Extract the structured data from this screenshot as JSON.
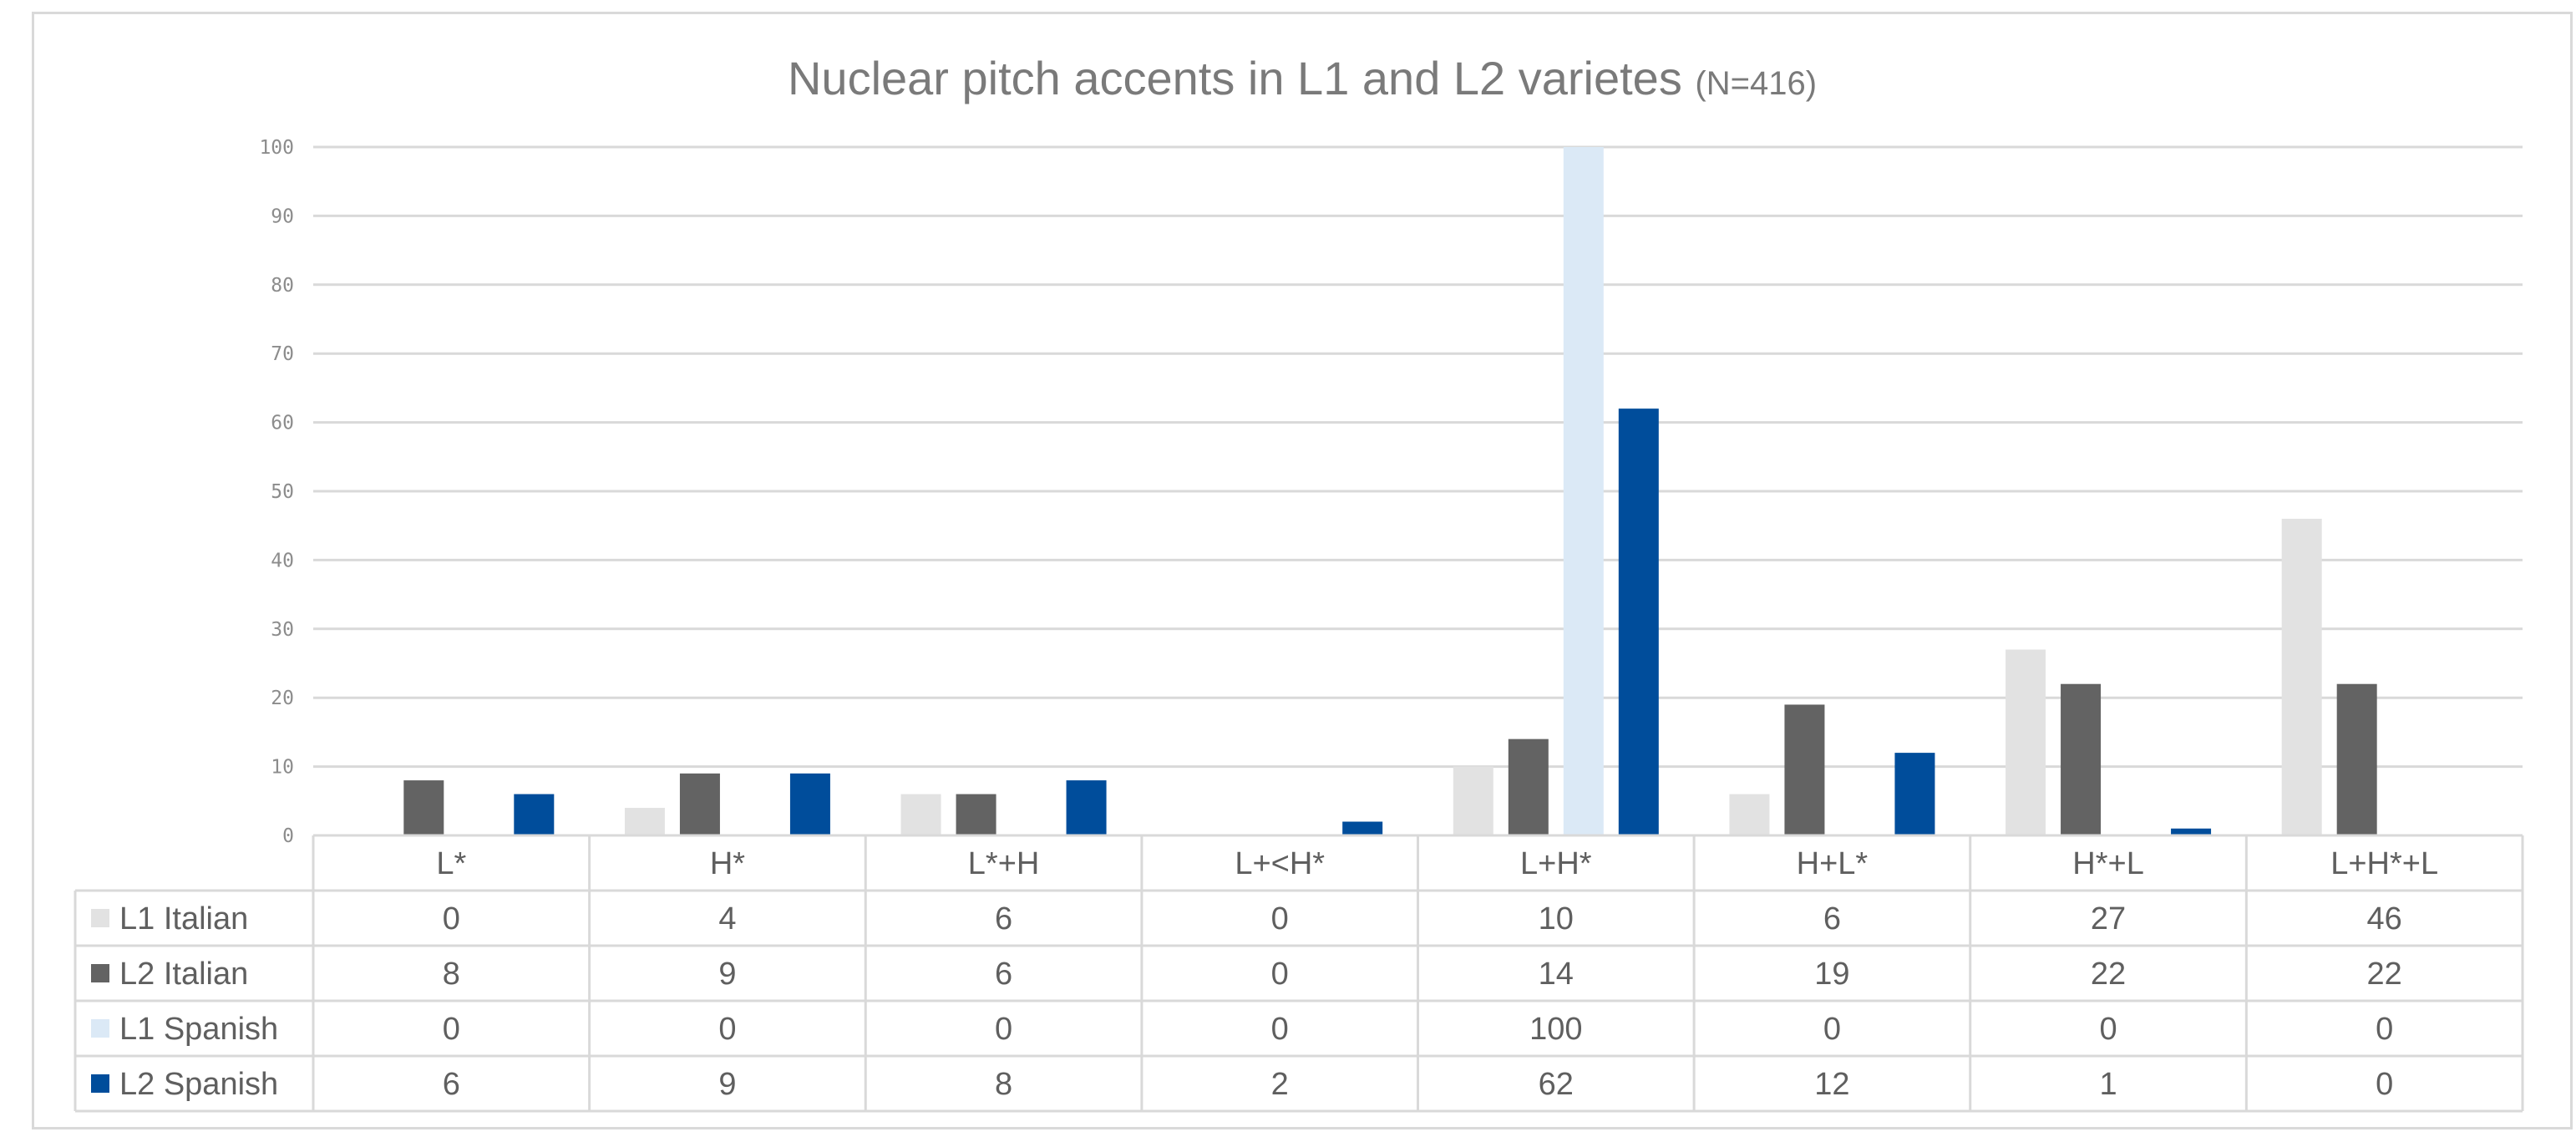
{
  "chart_data": {
    "type": "bar",
    "title": "Nuclear pitch accents in L1 and L2 varietes",
    "title_suffix": "(N=416)",
    "categories": [
      "L*",
      "H*",
      "L*+H",
      "L+<H*",
      "L+H*",
      "H+L*",
      "H*+L",
      "L+H*+L"
    ],
    "series": [
      {
        "name": "L1 Italian",
        "color": "#e2e2e2",
        "values": [
          0,
          4,
          6,
          0,
          10,
          6,
          27,
          46
        ]
      },
      {
        "name": "L2 Italian",
        "color": "#636363",
        "values": [
          8,
          9,
          6,
          0,
          14,
          19,
          22,
          22
        ]
      },
      {
        "name": "L1 Spanish",
        "color": "#dbe9f6",
        "values": [
          0,
          0,
          0,
          0,
          100,
          0,
          0,
          0
        ]
      },
      {
        "name": "L2 Spanish",
        "color": "#004d9b",
        "values": [
          6,
          9,
          8,
          2,
          62,
          12,
          1,
          0
        ]
      }
    ],
    "yticks": [
      0,
      10,
      20,
      30,
      40,
      50,
      60,
      70,
      80,
      90,
      100
    ],
    "ylim": [
      0,
      100
    ],
    "grid": true,
    "legend": "data-table"
  }
}
